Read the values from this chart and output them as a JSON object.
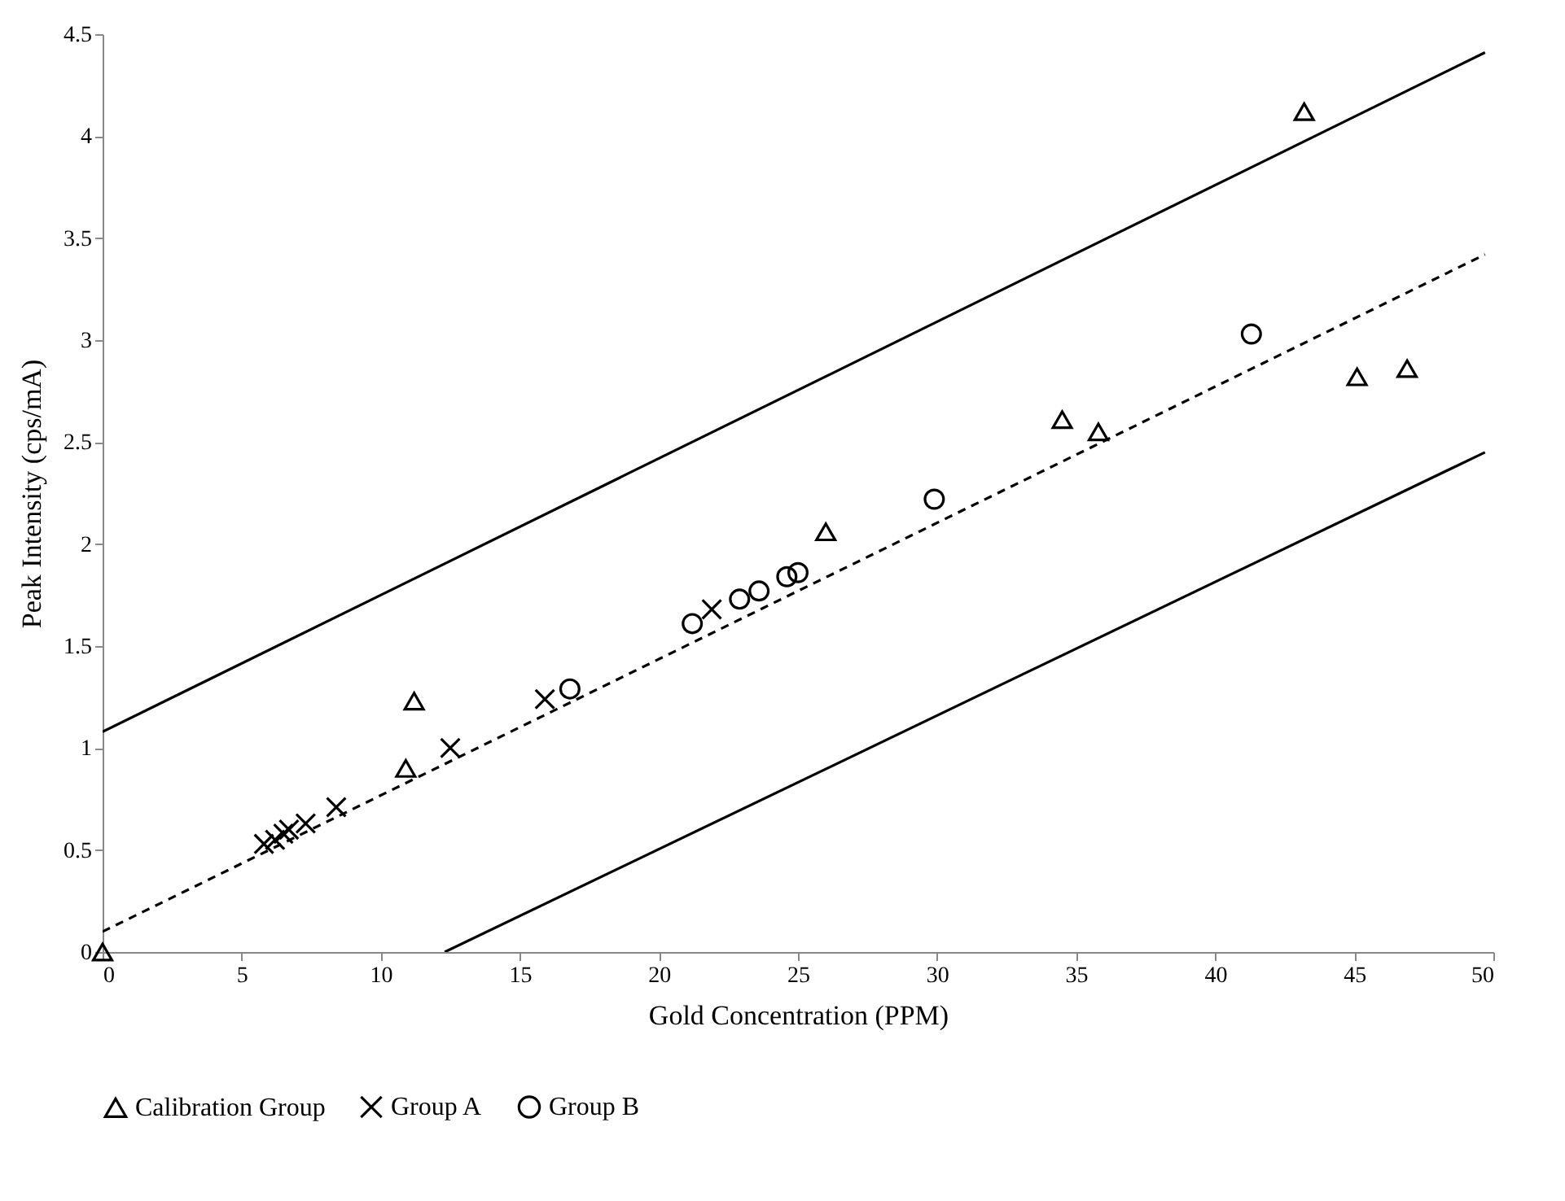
{
  "chart_data": {
    "type": "scatter",
    "xlabel": "Gold Concentration (PPM)",
    "ylabel": "Peak Intensity (cps/mA)",
    "xlim": [
      0,
      50
    ],
    "xticks": [
      0,
      5,
      10,
      15,
      20,
      25,
      30,
      35,
      40,
      45,
      50
    ],
    "ylim": [
      0,
      4.5
    ],
    "yticks": [
      0,
      0.5,
      1,
      1.5,
      2,
      2.5,
      3,
      3.5,
      4,
      4.5
    ],
    "grid": false,
    "legend": "bottom",
    "series": [
      {
        "name": "Calibration Group",
        "color": "#000000",
        "marker": "triangle",
        "x": [
          0,
          10.9,
          11.2,
          26,
          34.5,
          35.8,
          43.2,
          45.1,
          46.9
        ],
        "values": [
          0,
          0.9,
          1.23,
          2.06,
          2.61,
          2.55,
          4.12,
          2.82,
          2.86
        ]
      },
      {
        "name": "Group A",
        "color": "#000000",
        "marker": "cross",
        "x": [
          5.8,
          6.2,
          6.5,
          6.7,
          7.3,
          8.4,
          12.5,
          15.9,
          21.9
        ],
        "values": [
          0.53,
          0.55,
          0.58,
          0.6,
          0.63,
          0.71,
          1.0,
          1.24,
          1.68
        ]
      },
      {
        "name": "Group B",
        "color": "#000000",
        "marker": "circle",
        "x": [
          16.8,
          21.2,
          22.9,
          23.6,
          24.6,
          25.0,
          29.9,
          41.3
        ],
        "values": [
          1.29,
          1.61,
          1.73,
          1.77,
          1.84,
          1.86,
          2.22,
          3.03
        ]
      },
      {
        "type": "line",
        "color": "#000000",
        "line_style": "dashed",
        "marker": "none",
        "x": [
          0,
          49.7
        ],
        "values": [
          0.1,
          3.42
        ]
      },
      {
        "type": "line",
        "color": "#000000",
        "line_style": "solid",
        "marker": "none",
        "x": [
          0,
          49.7
        ],
        "values": [
          1.08,
          4.41
        ]
      },
      {
        "type": "line",
        "color": "#000000",
        "line_style": "solid",
        "marker": "none",
        "x": [
          12.3,
          49.7
        ],
        "values": [
          0,
          2.45
        ]
      }
    ]
  }
}
